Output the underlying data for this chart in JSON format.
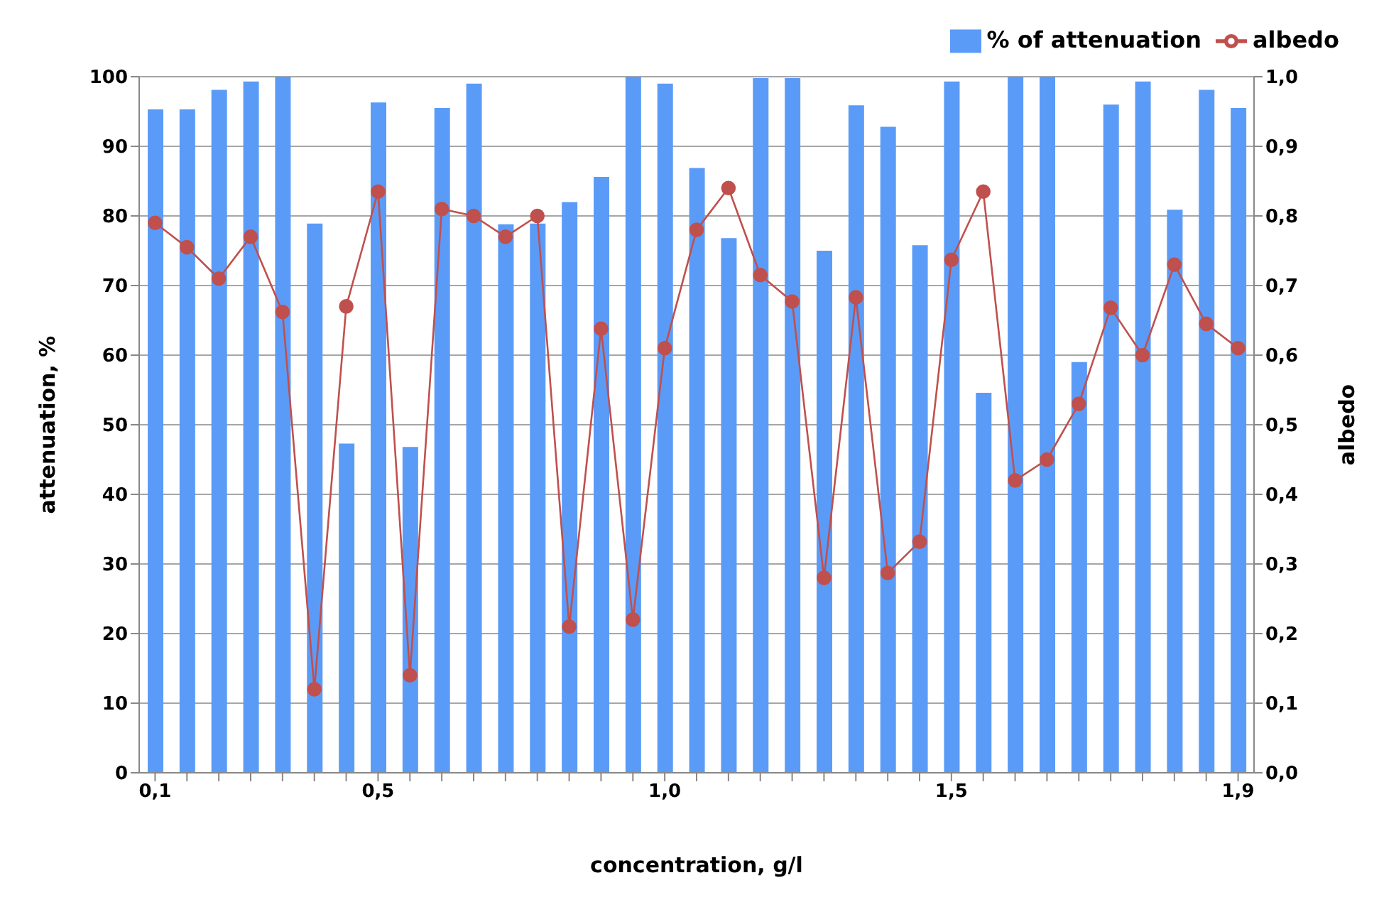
{
  "chart_data": {
    "type": "bar",
    "xlabel": "concentration, g/l",
    "ylabel": "attenuation, %",
    "y2label": "albedo",
    "categories": [
      "0,1",
      null,
      null,
      null,
      null,
      null,
      null,
      "0,5",
      null,
      null,
      null,
      null,
      null,
      null,
      null,
      null,
      "1,0",
      null,
      null,
      null,
      null,
      null,
      null,
      null,
      null,
      "1,5",
      null,
      null,
      null,
      null,
      null,
      null,
      null,
      null,
      "1,9"
    ],
    "series": [
      {
        "name": "% of attenuation",
        "color": "#5b9bf8",
        "values": [
          95.3,
          95.3,
          98.1,
          99.3,
          100,
          78.9,
          47.3,
          96.3,
          46.8,
          95.5,
          99,
          78.8,
          78.9,
          82,
          85.6,
          100,
          99,
          86.9,
          76.8,
          99.8,
          99.8,
          75,
          95.9,
          92.8,
          75.8,
          99.3,
          54.6,
          100,
          100,
          59,
          96,
          99.3,
          80.9,
          98.1,
          95.5
        ]
      },
      {
        "name": "albedo",
        "type": "line",
        "axis": "y2",
        "color": "#c0504d",
        "marker": "circle",
        "values": [
          0.79,
          0.755,
          0.71,
          0.77,
          0.662,
          0.12,
          0.67,
          0.835,
          0.14,
          0.81,
          0.8,
          0.77,
          0.8,
          0.21,
          0.638,
          0.22,
          0.61,
          0.78,
          0.84,
          0.715,
          0.677,
          0.28,
          0.683,
          0.287,
          0.332,
          0.737,
          0.835,
          0.42,
          0.45,
          0.53,
          0.668,
          0.6,
          0.73,
          0.645,
          0.61
        ]
      }
    ],
    "ylim": [
      0,
      100
    ],
    "yticks": [
      0,
      10,
      20,
      30,
      40,
      50,
      60,
      70,
      80,
      90,
      100
    ],
    "y2lim": [
      0,
      1
    ],
    "y2ticks": [
      {
        "value": 0,
        "label": "0,0"
      },
      {
        "value": 0.1,
        "label": "0,1"
      },
      {
        "value": 0.2,
        "label": "0,2"
      },
      {
        "value": 0.3,
        "label": "0,3"
      },
      {
        "value": 0.4,
        "label": "0,4"
      },
      {
        "value": 0.5,
        "label": "0,5"
      },
      {
        "value": 0.6,
        "label": "0,6"
      },
      {
        "value": 0.7,
        "label": "0,7"
      },
      {
        "value": 0.8,
        "label": "0,8"
      },
      {
        "value": 0.9,
        "label": "0,9"
      },
      {
        "value": 1,
        "label": "1,0"
      }
    ],
    "grid": "y",
    "legend": "top right"
  }
}
